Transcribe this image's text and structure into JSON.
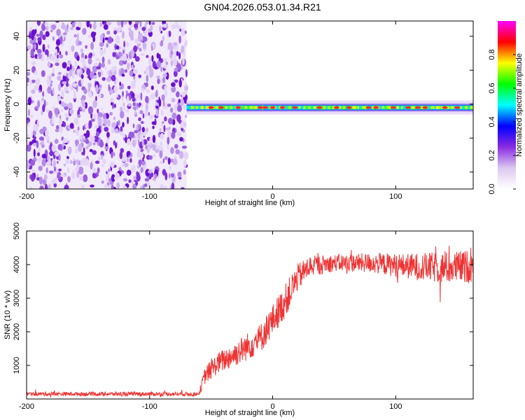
{
  "title": "GN04.2026.053.01.34.R21",
  "chart_data": [
    {
      "type": "heatmap",
      "xlabel": "Height of straight line (km)",
      "ylabel": "Frequency (Hz)",
      "xlim": [
        -200,
        163
      ],
      "ylim": [
        -50,
        49
      ],
      "xticks": [
        -200,
        -100,
        0,
        100
      ],
      "yticks": [
        -40,
        -20,
        0,
        20,
        40
      ],
      "noise_region_x": [
        -200,
        -70
      ],
      "signal_start_x": -70,
      "signal_freq_hz": -2,
      "signal_peaks_x": [
        -50,
        -42,
        -28,
        -10,
        -6,
        0,
        8,
        18,
        38,
        52,
        62,
        78,
        84,
        98,
        110,
        118,
        124,
        140,
        150
      ],
      "colorbar": {
        "label": "Normalized spectral amplitude",
        "ticks": [
          0.0,
          0.2,
          0.4,
          0.6,
          0.8
        ],
        "range": [
          0,
          1
        ],
        "colors": [
          "#ffffff",
          "#dcc8f0",
          "#8a2be2",
          "#0000ff",
          "#00ffff",
          "#00ff00",
          "#ffff00",
          "#ff0000",
          "#ff00ff"
        ]
      }
    },
    {
      "type": "line",
      "xlabel": "Height of straight line (km)",
      "ylabel": "SNR (10 * v/v)",
      "xlim": [
        -200,
        163
      ],
      "ylim": [
        0,
        5000
      ],
      "xticks": [
        -200,
        -100,
        0,
        100
      ],
      "yticks": [
        1000,
        2000,
        3000,
        4000,
        5000
      ],
      "line_color": "#ee3333",
      "trend_x": [
        -200,
        -60,
        -55,
        -45,
        -30,
        -10,
        10,
        20,
        30,
        50,
        80,
        110,
        140,
        163
      ],
      "trend_y": [
        150,
        150,
        700,
        1050,
        1350,
        1800,
        2900,
        3600,
        3950,
        4050,
        4050,
        3950,
        3900,
        3950
      ],
      "noise_amplitude_y": [
        60,
        60,
        260,
        320,
        380,
        450,
        500,
        420,
        320,
        250,
        300,
        380,
        480,
        500
      ]
    }
  ]
}
